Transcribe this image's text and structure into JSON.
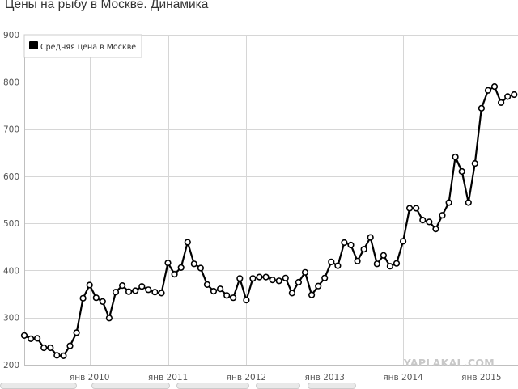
{
  "page_title": "Цены на рыбу в Москве. Динамика",
  "watermark": "YAPLAKAL.COM",
  "chart_data": {
    "type": "line",
    "title": "Цены на рыбу в Москве. Динамика",
    "xlabel": "",
    "ylabel": "",
    "ylim": [
      200,
      900
    ],
    "yticks": [
      200,
      300,
      400,
      500,
      600,
      700,
      800,
      900
    ],
    "xticks": [
      {
        "label": "янв 2010",
        "index": 10
      },
      {
        "label": "янв 2011",
        "index": 22
      },
      {
        "label": "янв 2012",
        "index": 34
      },
      {
        "label": "янв 2013",
        "index": 46
      },
      {
        "label": "янв 2014",
        "index": 58
      },
      {
        "label": "янв 2015",
        "index": 70
      }
    ],
    "grid": true,
    "legend_position": "top-left",
    "line_color": "#000000",
    "marker_fill": "#ffffff",
    "series": [
      {
        "name": "Средняя цена в Москве",
        "values": [
          262,
          255,
          256,
          236,
          236,
          220,
          219,
          240,
          268,
          341,
          369,
          342,
          334,
          299,
          354,
          368,
          355,
          357,
          366,
          359,
          354,
          352,
          416,
          392,
          406,
          460,
          414,
          405,
          370,
          356,
          361,
          347,
          342,
          383,
          337,
          383,
          386,
          386,
          380,
          378,
          384,
          352,
          375,
          396,
          348,
          367,
          384,
          418,
          410,
          459,
          454,
          420,
          445,
          470,
          414,
          432,
          409,
          415,
          462,
          532,
          532,
          507,
          503,
          488,
          517,
          544,
          641,
          610,
          544,
          627,
          744,
          782,
          790,
          756,
          769,
          773
        ]
      }
    ]
  }
}
